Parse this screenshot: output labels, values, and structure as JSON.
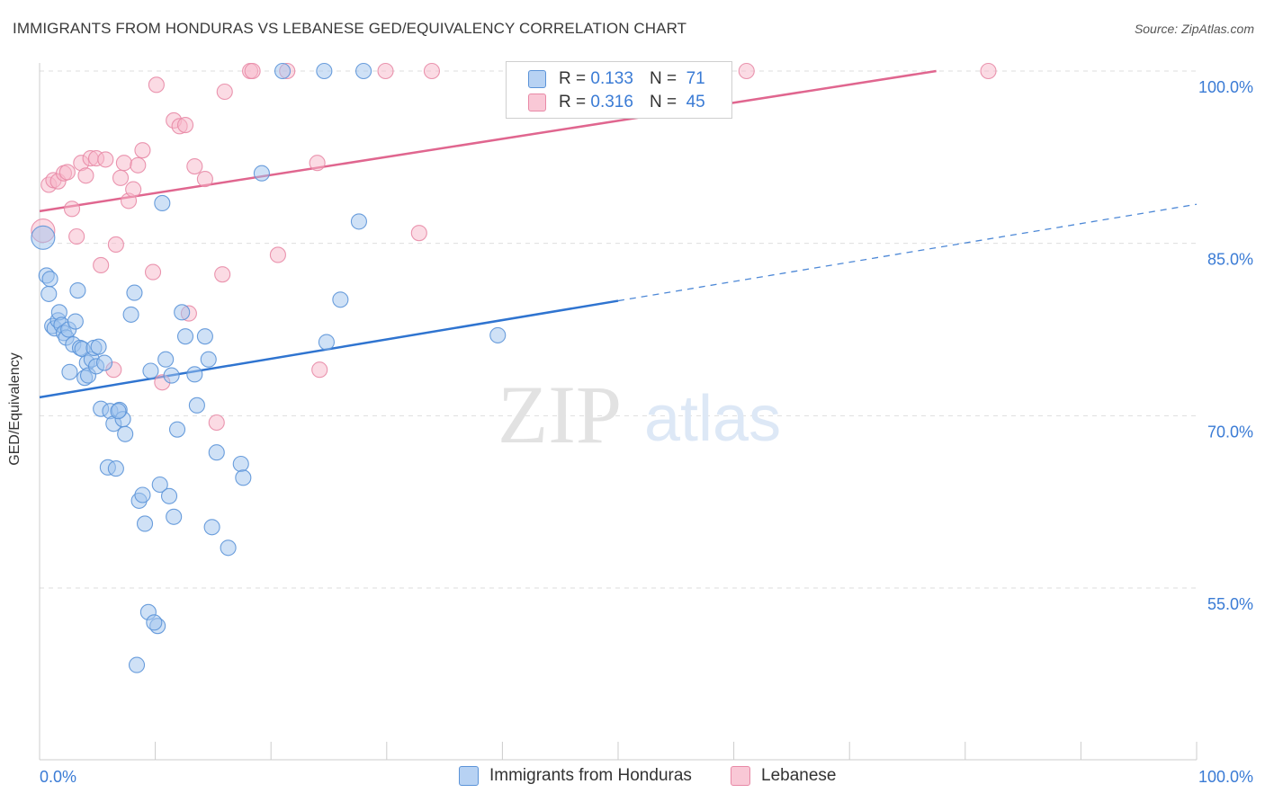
{
  "title": "IMMIGRANTS FROM HONDURAS VS LEBANESE GED/EQUIVALENCY CORRELATION CHART",
  "source": "Source: ZipAtlas.com",
  "watermark": {
    "zip": "ZIP",
    "atlas": "atlas"
  },
  "legend": {
    "rows": [
      {
        "r_label": "R =",
        "r_value": "0.133",
        "n_label": "N =",
        "n_value": "71"
      },
      {
        "r_label": "R =",
        "r_value": "0.316",
        "n_label": "N =",
        "n_value": "45"
      }
    ]
  },
  "chart_data": {
    "type": "scatter",
    "title": "IMMIGRANTS FROM HONDURAS VS LEBANESE GED/EQUIVALENCY CORRELATION CHART",
    "xlabel": "",
    "ylabel": "GED/Equivalency",
    "xlim": [
      0,
      100
    ],
    "ylim": [
      40.5,
      101.5
    ],
    "x_tick_labels": [
      "0.0%",
      "100.0%"
    ],
    "y_ticks": [
      {
        "value": 55,
        "label": "55.0%"
      },
      {
        "value": 70,
        "label": "70.0%"
      },
      {
        "value": 85,
        "label": "85.0%"
      },
      {
        "value": 100,
        "label": "100.0%"
      }
    ],
    "grid": true,
    "series": [
      {
        "name": "Immigrants from Honduras",
        "color": "#9fc3ee",
        "stroke": "#5b93d8",
        "trend_color": "#2f74d0",
        "trend": {
          "x0": 0,
          "y0": 71.6,
          "x1": 50,
          "y1": 80.0,
          "dash_to_x": 100,
          "dash_to_y": 88.4
        },
        "points": [
          [
            0.3,
            85.5
          ],
          [
            0.6,
            82.2
          ],
          [
            0.8,
            80.6
          ],
          [
            0.9,
            81.9
          ],
          [
            1.1,
            77.8
          ],
          [
            1.3,
            77.6
          ],
          [
            1.6,
            78.3
          ],
          [
            1.7,
            79.0
          ],
          [
            1.9,
            77.9
          ],
          [
            2.1,
            77.2
          ],
          [
            2.3,
            76.8
          ],
          [
            2.5,
            77.5
          ],
          [
            2.6,
            73.8
          ],
          [
            2.9,
            76.2
          ],
          [
            3.1,
            78.2
          ],
          [
            3.3,
            80.9
          ],
          [
            3.5,
            75.9
          ],
          [
            3.7,
            75.8
          ],
          [
            3.9,
            73.3
          ],
          [
            4.1,
            74.6
          ],
          [
            4.2,
            73.5
          ],
          [
            4.5,
            74.9
          ],
          [
            4.7,
            75.9
          ],
          [
            4.9,
            74.3
          ],
          [
            5.1,
            76.0
          ],
          [
            5.3,
            70.6
          ],
          [
            5.6,
            74.6
          ],
          [
            5.9,
            65.5
          ],
          [
            6.1,
            70.4
          ],
          [
            6.4,
            69.3
          ],
          [
            6.6,
            65.4
          ],
          [
            6.9,
            70.5
          ],
          [
            7.2,
            69.7
          ],
          [
            7.4,
            68.4
          ],
          [
            7.9,
            78.8
          ],
          [
            8.2,
            80.7
          ],
          [
            8.6,
            62.6
          ],
          [
            8.9,
            63.1
          ],
          [
            9.1,
            60.6
          ],
          [
            9.4,
            52.9
          ],
          [
            9.6,
            73.9
          ],
          [
            10.2,
            51.7
          ],
          [
            10.4,
            64.0
          ],
          [
            10.6,
            88.5
          ],
          [
            10.9,
            74.9
          ],
          [
            11.2,
            63.0
          ],
          [
            11.4,
            73.5
          ],
          [
            11.6,
            61.2
          ],
          [
            11.9,
            68.8
          ],
          [
            12.3,
            79.0
          ],
          [
            12.6,
            76.9
          ],
          [
            13.4,
            73.6
          ],
          [
            13.6,
            70.9
          ],
          [
            14.3,
            76.9
          ],
          [
            14.6,
            74.9
          ],
          [
            14.9,
            60.3
          ],
          [
            15.3,
            66.8
          ],
          [
            16.3,
            58.5
          ],
          [
            17.4,
            65.8
          ],
          [
            17.6,
            64.6
          ],
          [
            19.2,
            91.1
          ],
          [
            8.4,
            48.3
          ],
          [
            9.9,
            52.0
          ],
          [
            21.0,
            100.0
          ],
          [
            24.6,
            100.0
          ],
          [
            28.0,
            100.0
          ],
          [
            24.8,
            76.4
          ],
          [
            26.0,
            80.1
          ],
          [
            27.6,
            86.9
          ],
          [
            39.6,
            77.0
          ],
          [
            6.8,
            70.4
          ]
        ]
      },
      {
        "name": "Lebanese",
        "color": "#f7b8ca",
        "stroke": "#e889a6",
        "trend_color": "#e0668f",
        "trend": {
          "x0": 0,
          "y0": 87.8,
          "x1": 77.5,
          "y1": 100.0
        },
        "points": [
          [
            0.3,
            86.1
          ],
          [
            0.8,
            90.1
          ],
          [
            1.2,
            90.5
          ],
          [
            1.6,
            90.4
          ],
          [
            2.1,
            91.1
          ],
          [
            2.4,
            91.2
          ],
          [
            2.8,
            88.0
          ],
          [
            3.2,
            85.6
          ],
          [
            3.6,
            92.0
          ],
          [
            4.0,
            90.9
          ],
          [
            4.4,
            92.4
          ],
          [
            4.9,
            92.4
          ],
          [
            5.3,
            83.1
          ],
          [
            5.7,
            92.3
          ],
          [
            6.4,
            74.0
          ],
          [
            6.6,
            84.9
          ],
          [
            7.0,
            90.7
          ],
          [
            7.3,
            92.0
          ],
          [
            7.7,
            88.7
          ],
          [
            8.1,
            89.7
          ],
          [
            8.5,
            91.8
          ],
          [
            8.9,
            93.1
          ],
          [
            9.8,
            82.5
          ],
          [
            10.1,
            98.8
          ],
          [
            10.6,
            72.9
          ],
          [
            11.6,
            95.7
          ],
          [
            12.1,
            95.2
          ],
          [
            12.6,
            95.3
          ],
          [
            12.9,
            78.9
          ],
          [
            13.4,
            91.7
          ],
          [
            14.3,
            90.6
          ],
          [
            15.3,
            69.4
          ],
          [
            15.8,
            82.3
          ],
          [
            16.0,
            98.2
          ],
          [
            18.2,
            100.0
          ],
          [
            18.4,
            100.0
          ],
          [
            20.6,
            84.0
          ],
          [
            21.4,
            100.0
          ],
          [
            24.0,
            92.0
          ],
          [
            24.2,
            74.0
          ],
          [
            29.9,
            100.0
          ],
          [
            32.8,
            85.9
          ],
          [
            33.9,
            100.0
          ],
          [
            61.1,
            100.0
          ],
          [
            82.0,
            100.0
          ]
        ]
      }
    ]
  }
}
